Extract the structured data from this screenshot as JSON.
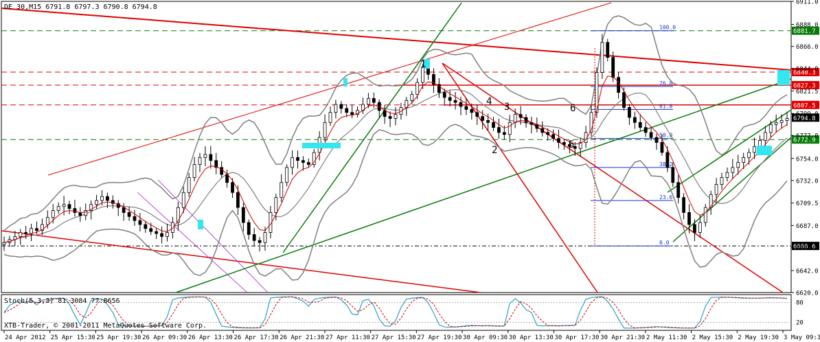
{
  "chart_data": {
    "type": "candlestick",
    "header": "DE 30,M15  6791.8 6797.3 6790.8 6794.8",
    "copyright": "XTB-Trader, © 2001-2011 MetaQuotes Software Corp.",
    "indicator_label": "Stoch(5,3,3) 81.3084 77.8656",
    "colors": {
      "bull": "#000000",
      "bear": "#000000",
      "bollinger": "#7f7f7f",
      "ma": "#cc0000",
      "trend_red": "#e00000",
      "trend_green": "#0a7a0a",
      "fib": "#1a33cc",
      "highlight": "#33e6f0",
      "stoch_main": "#28a0c8",
      "stoch_signal": "#cc0000"
    },
    "y_ticks": [
      "6911.0",
      "6888.0",
      "6866.0",
      "6844.0",
      "6821.5",
      "6799.0",
      "6777.0",
      "6754.0",
      "6732.0",
      "6709.5",
      "6687.0",
      "6665.0",
      "6642.0",
      "6620.0"
    ],
    "ylim": [
      6620.0,
      6911.0
    ],
    "price_labels": [
      {
        "value": 6881.7,
        "label": "6881.7",
        "color": "#0a7a0a"
      },
      {
        "value": 6840.3,
        "label": "6840.3",
        "color": "#e00000"
      },
      {
        "value": 6827.3,
        "label": "6827.3",
        "color": "#e00000"
      },
      {
        "value": 6807.5,
        "label": "6807.5",
        "color": "#e00000"
      },
      {
        "value": 6794.8,
        "label": "6794.8",
        "color": "#000000"
      },
      {
        "value": 6772.9,
        "label": "6772.9",
        "color": "#0a7a0a"
      },
      {
        "value": 6666.6,
        "label": "6666.6",
        "color": "#000000"
      }
    ],
    "x_ticks": [
      "24 Apr 2012",
      "25 Apr 15:30",
      "25 Apr 19:30",
      "26 Apr 09:30",
      "26 Apr 13:30",
      "26 Apr 17:30",
      "26 Apr 21:30",
      "27 Apr 11:30",
      "27 Apr 15:30",
      "27 Apr 19:30",
      "30 Apr 09:30",
      "30 Apr 13:30",
      "30 Apr 17:30",
      "30 Apr 21:30",
      "2 May 11:30",
      "2 May 15:30",
      "2 May 19:30",
      "3 May 09:30"
    ],
    "fib_levels": [
      {
        "label": "100.0",
        "value": 6881.7
      },
      {
        "label": "76.8",
        "value": 6826.0
      },
      {
        "label": "61.8",
        "value": 6803.0
      },
      {
        "label": "50.0",
        "value": 6774.0
      },
      {
        "label": "38.2",
        "value": 6745.0
      },
      {
        "label": "23.6",
        "value": 6712.0
      },
      {
        "label": "0.0",
        "value": 6666.6
      }
    ],
    "wave_labels": [
      "1",
      "2",
      "3",
      "4",
      "5",
      "6"
    ],
    "stoch_levels": [
      "80",
      "20"
    ],
    "stoch_ylim": [
      0,
      100
    ],
    "close_series": [
      6670,
      6673,
      6676,
      6680,
      6679,
      6684,
      6682,
      6688,
      6695,
      6702,
      6706,
      6708,
      6704,
      6700,
      6697,
      6702,
      6708,
      6712,
      6716,
      6712,
      6709,
      6705,
      6700,
      6696,
      6692,
      6688,
      6684,
      6681,
      6679,
      6676,
      6680,
      6690,
      6705,
      6720,
      6735,
      6748,
      6755,
      6758,
      6752,
      6745,
      6738,
      6730,
      6720,
      6705,
      6690,
      6678,
      6672,
      6670,
      6680,
      6700,
      6715,
      6730,
      6745,
      6755,
      6752,
      6750,
      6748,
      6760,
      6775,
      6790,
      6800,
      6808,
      6804,
      6800,
      6798,
      6802,
      6808,
      6814,
      6810,
      6802,
      6796,
      6794,
      6798,
      6805,
      6812,
      6818,
      6830,
      6845,
      6838,
      6828,
      6820,
      6815,
      6812,
      6810,
      6806,
      6803,
      6800,
      6796,
      6792,
      6790,
      6785,
      6780,
      6778,
      6790,
      6798,
      6795,
      6790,
      6788,
      6784,
      6780,
      6778,
      6774,
      6770,
      6768,
      6766,
      6764,
      6770,
      6780,
      6800,
      6840,
      6870,
      6855,
      6835,
      6820,
      6805,
      6795,
      6790,
      6785,
      6780,
      6775,
      6770,
      6760,
      6745,
      6730,
      6715,
      6700,
      6688,
      6680,
      6690,
      6705,
      6718,
      6728,
      6735,
      6740,
      6745,
      6750,
      6755,
      6760,
      6766,
      6772,
      6780,
      6788,
      6790,
      6792,
      6794
    ]
  }
}
